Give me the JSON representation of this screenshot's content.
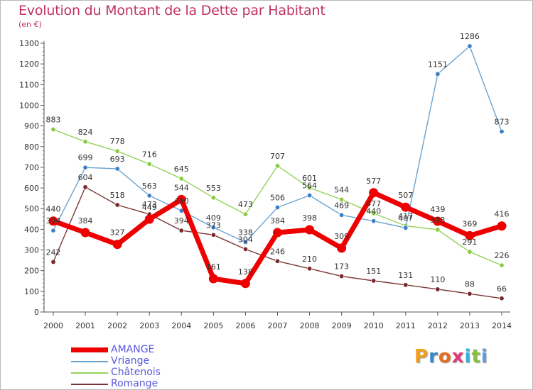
{
  "title": "Evolution du Montant de la Dette par Habitant",
  "unit": "(en €)",
  "logo": {
    "text": "Proxiti",
    "letter_colors": [
      "#f0a01c",
      "#3d88c8",
      "#e07020",
      "#e03a7a",
      "#3ab0d8",
      "#88c040",
      "#5a9ee0"
    ]
  },
  "legend": [
    {
      "name": "AMANGE",
      "color": "#ee0000"
    },
    {
      "name": "Vriange",
      "color": "#6aa3d0"
    },
    {
      "name": "Châtenois",
      "color": "#94d25a"
    },
    {
      "name": "Romange",
      "color": "#7a3535"
    }
  ],
  "chart_data": {
    "type": "line",
    "title": "Evolution du Montant de la Dette par Habitant",
    "ylabel": "(en €)",
    "xlabel": "",
    "x": [
      2000,
      2001,
      2002,
      2003,
      2004,
      2005,
      2006,
      2007,
      2008,
      2009,
      2010,
      2011,
      2012,
      2013,
      2014
    ],
    "ylim": [
      0,
      1300
    ],
    "yticks": [
      0,
      100,
      200,
      300,
      400,
      500,
      600,
      700,
      800,
      900,
      1000,
      1100,
      1200,
      1300
    ],
    "grid": false,
    "legend_position": "bottom-left",
    "series": [
      {
        "name": "AMANGE",
        "color": "#ee0000",
        "marker": "#ee0000",
        "width": 7,
        "label_offset": -13,
        "values": [
          440,
          384,
          327,
          449,
          544,
          161,
          138,
          384,
          398,
          309,
          577,
          507,
          439,
          369,
          416
        ]
      },
      {
        "name": "Vriange",
        "color": "#6aa3d0",
        "marker": "#3d7fc4",
        "width": 1.4,
        "label_offset": -10,
        "values": [
          394,
          699,
          693,
          563,
          490,
          409,
          338,
          506,
          564,
          469,
          440,
          407,
          1151,
          1286,
          873
        ]
      },
      {
        "name": "Châtenois",
        "color": "#94d25a",
        "marker": "#88cc44",
        "width": 1.4,
        "label_offset": -10,
        "values": [
          883,
          824,
          778,
          716,
          645,
          553,
          473,
          707,
          601,
          544,
          477,
          417,
          398,
          291,
          226
        ]
      },
      {
        "name": "Romange",
        "color": "#7a3535",
        "marker": "#7a2a2a",
        "width": 1.4,
        "label_offset": -10,
        "values": [
          242,
          604,
          518,
          473,
          394,
          373,
          304,
          246,
          210,
          173,
          151,
          131,
          110,
          88,
          66
        ]
      }
    ]
  }
}
